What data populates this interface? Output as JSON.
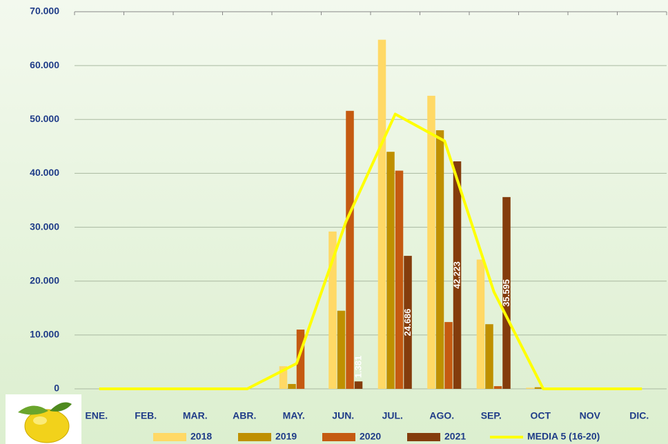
{
  "chart_data": {
    "type": "bar",
    "categories": [
      "ENE.",
      "FEB.",
      "MAR.",
      "ABR.",
      "MAY.",
      "JUN.",
      "JUL.",
      "AGO.",
      "SEP.",
      "OCT",
      "NOV",
      "DIC."
    ],
    "series": [
      {
        "name": "2018",
        "color": "#ffd966",
        "values": [
          0,
          0,
          0,
          0,
          4200,
          29200,
          64800,
          54400,
          24000,
          200,
          0,
          0
        ]
      },
      {
        "name": "2019",
        "color": "#bf9000",
        "values": [
          0,
          0,
          0,
          0,
          900,
          14500,
          44000,
          48000,
          12000,
          300,
          0,
          0
        ]
      },
      {
        "name": "2020",
        "color": "#c55a11",
        "values": [
          0,
          0,
          0,
          0,
          11000,
          51600,
          40500,
          12400,
          500,
          200,
          0,
          0
        ]
      },
      {
        "name": "2021",
        "color": "#843c0c",
        "values": [
          0,
          0,
          0,
          0,
          0,
          1381,
          24686,
          42223,
          35595,
          0,
          0,
          0
        ],
        "value_labels": [
          null,
          null,
          null,
          null,
          null,
          "1.381",
          "24.686",
          "42.223",
          "35.595",
          null,
          null,
          null
        ]
      },
      {
        "name": "MEDIA 5 (16-20)",
        "type": "line",
        "color": "#ffff00",
        "values": [
          0,
          0,
          0,
          0,
          4700,
          31000,
          51000,
          46000,
          18000,
          0,
          0,
          0
        ]
      }
    ],
    "ylim": [
      0,
      70000
    ],
    "yticks": [
      0,
      {
        "value": 10000,
        "label": "10.000"
      },
      {
        "value": 20000,
        "label": "20.000"
      },
      {
        "value": 30000,
        "label": "30.000"
      },
      {
        "value": 40000,
        "label": "40.000"
      },
      {
        "value": 50000,
        "label": "50.000"
      },
      {
        "value": 60000,
        "label": "60.000"
      },
      {
        "value": 70000,
        "label": "70.000"
      }
    ],
    "grid": true,
    "legend": "bottom"
  }
}
